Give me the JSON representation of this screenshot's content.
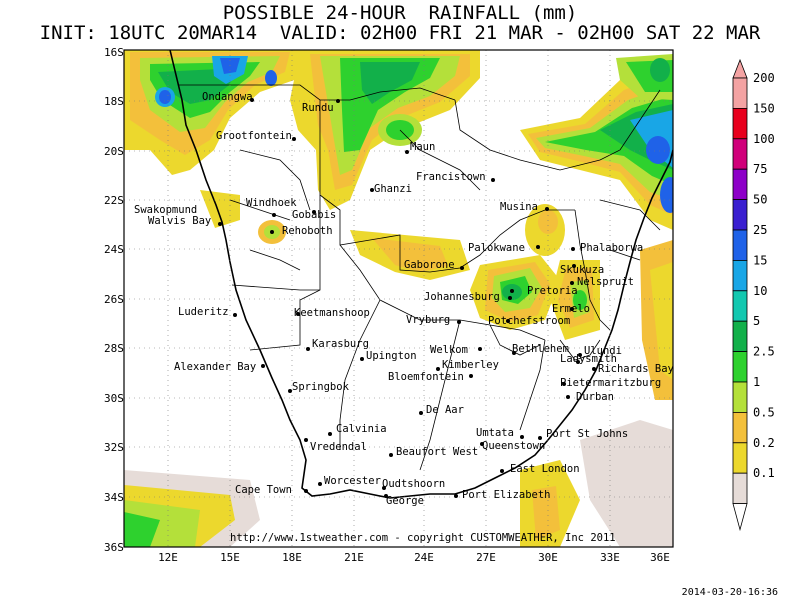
{
  "title_line1": "POSSIBLE 24-HOUR  RAINFALL (mm)",
  "title_line2": "INIT: 18UTC 20MAR14  VALID: 02H00 FRI 21 MAR - 02H00 SAT 22 MAR",
  "copyright": "http://www.1stweather.com - copyright CUSTOMWEATHER, Inc 2011",
  "timestamp": "2014-03-20-16:36",
  "lat_labels": [
    "16S",
    "18S",
    "20S",
    "22S",
    "24S",
    "26S",
    "28S",
    "30S",
    "32S",
    "34S",
    "36S"
  ],
  "lon_labels": [
    "12E",
    "15E",
    "18E",
    "21E",
    "24E",
    "27E",
    "30E",
    "33E",
    "36E"
  ],
  "legend": [
    {
      "label": "200",
      "color": "#f4a3a3"
    },
    {
      "label": "150",
      "color": "#e8001d"
    },
    {
      "label": "100",
      "color": "#d0007a"
    },
    {
      "label": "75",
      "color": "#8d00c8"
    },
    {
      "label": "50",
      "color": "#3a1fd0"
    },
    {
      "label": "25",
      "color": "#1f62e8"
    },
    {
      "label": "15",
      "color": "#19a6e6"
    },
    {
      "label": "10",
      "color": "#13c8b0"
    },
    {
      "label": "5",
      "color": "#12b04a"
    },
    {
      "label": "2.5",
      "color": "#2ed12e"
    },
    {
      "label": "1",
      "color": "#b4e03a"
    },
    {
      "label": "0.5",
      "color": "#f3c03b"
    },
    {
      "label": "0.2",
      "color": "#ecd82d"
    },
    {
      "label": "0.1",
      "color": "#e6dcd8"
    }
  ],
  "cities": [
    "Ondangwa",
    "Rundu",
    "Grootfontein",
    "Maun",
    "Francistown",
    "Ghanzi",
    "Swakopmund",
    "Walvis Bay",
    "Windhoek",
    "Gobabis",
    "Rehoboth",
    "Musina",
    "Palokwane",
    "Phalaborwa",
    "Gaborone",
    "Skukuza",
    "Nelspruit",
    "Pretoria",
    "Johannesburg",
    "Ermelo",
    "Potchefstroom",
    "Luderitz",
    "Keetmanshoop",
    "Vryburg",
    "Karasburg",
    "Upington",
    "Welkom",
    "Bethlehem",
    "Ulundi",
    "Ladysmith",
    "Kimberley",
    "Richards Bay",
    "Alexander Bay",
    "Bloemfontein",
    "Springbok",
    "Pietermaritzburg",
    "Durban",
    "De Aar",
    "Calvinia",
    "Umtata",
    "Port St Johns",
    "Vredendal",
    "Queenstown",
    "Beaufort West",
    "East London",
    "Worcester",
    "Oudtshoorn",
    "Cape Town",
    "George",
    "Port Elizabeth"
  ]
}
